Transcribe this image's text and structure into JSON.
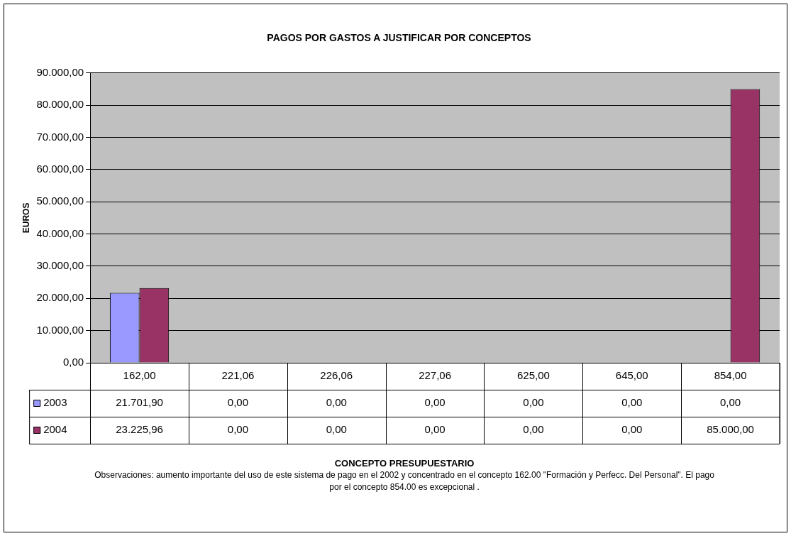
{
  "chart_data": {
    "type": "bar",
    "title": "PAGOS POR GASTOS A JUSTIFICAR POR CONCEPTOS",
    "ylabel": "EUROS",
    "categories": [
      "162,00",
      "221,06",
      "226,06",
      "227,06",
      "625,00",
      "645,00",
      "854,00"
    ],
    "series": [
      {
        "name": "2003",
        "color": "#9999ff",
        "values": [
          21701.9,
          0,
          0,
          0,
          0,
          0,
          0
        ],
        "value_labels": [
          "21.701,90",
          "0,00",
          "0,00",
          "0,00",
          "0,00",
          "0,00",
          "0,00"
        ]
      },
      {
        "name": "2004",
        "color": "#993366",
        "values": [
          23225.96,
          0,
          0,
          0,
          0,
          0,
          85000
        ],
        "value_labels": [
          "23.225,96",
          "0,00",
          "0,00",
          "0,00",
          "0,00",
          "0,00",
          "85.000,00"
        ]
      }
    ],
    "ylim": [
      0,
      90000
    ],
    "yticks": [
      {
        "value": 0,
        "label": "0,00"
      },
      {
        "value": 10000,
        "label": "10.000,00"
      },
      {
        "value": 20000,
        "label": "20.000,00"
      },
      {
        "value": 30000,
        "label": "30.000,00"
      },
      {
        "value": 40000,
        "label": "40.000,00"
      },
      {
        "value": 50000,
        "label": "50.000,00"
      },
      {
        "value": 60000,
        "label": "60.000,00"
      },
      {
        "value": 70000,
        "label": "70.000,00"
      },
      {
        "value": 80000,
        "label": "80.000,00"
      },
      {
        "value": 90000,
        "label": "90.000,00"
      }
    ],
    "grid": "y",
    "legend": "bottom",
    "annotations": [
      "CONCEPTO PRESUPUESTARIO",
      "Observaciones: aumento importante del uso de este sistema de pago en el 2002 y concentrado en el concepto 162.00 \"Formación y Perfecc. Del Personal\". El pago por el concepto 854.00 es excepcional ."
    ]
  }
}
